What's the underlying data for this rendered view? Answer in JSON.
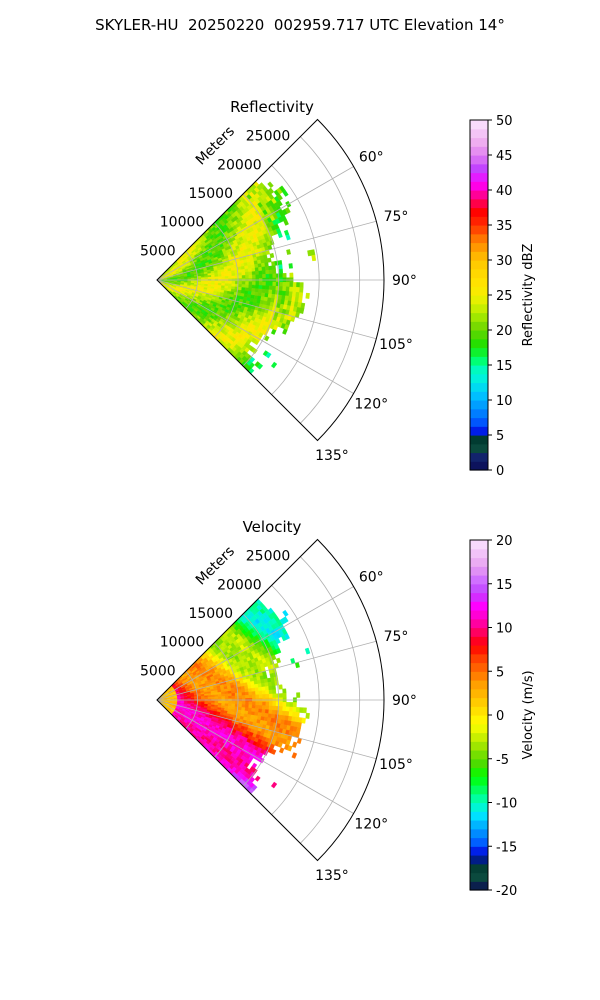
{
  "figure": {
    "title": "SKYLER-HU  20250220  002959.717 UTC Elevation 14°"
  },
  "chart_data": [
    {
      "type": "heatmap",
      "projection": "polar-sector",
      "title": "Reflectivity",
      "radial_label": "Meters",
      "r_ticks": [
        5000,
        10000,
        15000,
        20000,
        25000
      ],
      "theta_ticks": [
        "60°",
        "75°",
        "90°",
        "105°",
        "120°",
        "135°"
      ],
      "theta_range_deg": [
        45,
        135
      ],
      "r_range": [
        0,
        28000
      ],
      "data_extent_r": 18500,
      "grid": true,
      "field": "reflectivity",
      "colorbar": {
        "label": "Reflectivity dBZ",
        "range": [
          0,
          50
        ],
        "ticks": [
          0,
          5,
          10,
          15,
          20,
          25,
          30,
          35,
          40,
          45,
          50
        ]
      }
    },
    {
      "type": "heatmap",
      "projection": "polar-sector",
      "title": "Velocity",
      "radial_label": "Meters",
      "r_ticks": [
        5000,
        10000,
        15000,
        20000,
        25000
      ],
      "theta_ticks": [
        "60°",
        "75°",
        "90°",
        "105°",
        "120°",
        "135°"
      ],
      "theta_range_deg": [
        45,
        135
      ],
      "r_range": [
        0,
        28000
      ],
      "data_extent_r": 18500,
      "grid": true,
      "field": "velocity",
      "colorbar": {
        "label": "Velocity (m/s)",
        "range": [
          -20,
          20
        ],
        "ticks": [
          -20,
          -15,
          -10,
          -5,
          0,
          5,
          10,
          15,
          20
        ]
      }
    }
  ]
}
